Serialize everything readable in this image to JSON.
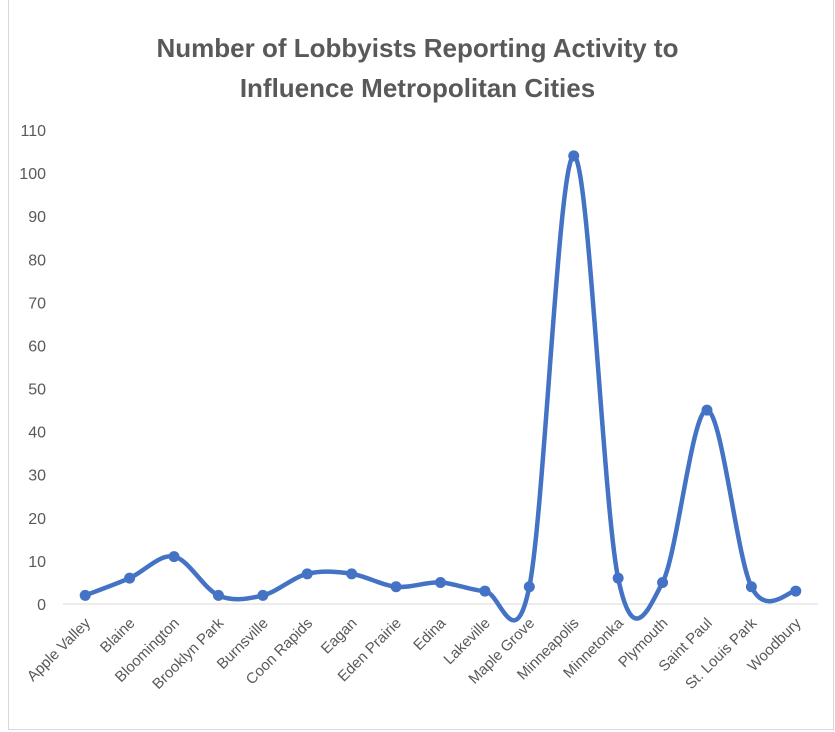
{
  "chart_data": {
    "type": "line",
    "title_line1": "Number of Lobbyists Reporting  Activity  to",
    "title_line2": "Influence Metropolitan Cities",
    "xlabel": "",
    "ylabel": "",
    "ylim": [
      0,
      110
    ],
    "yticks": [
      0,
      10,
      20,
      30,
      40,
      50,
      60,
      70,
      80,
      90,
      100,
      110
    ],
    "smooth": true,
    "grid": false,
    "legend": "none",
    "color": "#4472c4",
    "categories": [
      "Apple Valley",
      "Blaine",
      "Bloomington",
      "Brooklyn Park",
      "Burnsville",
      "Coon Rapids",
      "Eagan",
      "Eden Prairie",
      "Edina",
      "Lakeville",
      "Maple Grove",
      "Minneapolis",
      "Minnetonka",
      "Plymouth",
      "Saint Paul",
      "St. Louis Park",
      "Woodbury"
    ],
    "values": [
      2,
      6,
      11,
      2,
      2,
      7,
      7,
      4,
      5,
      3,
      4,
      104,
      6,
      5,
      45,
      4,
      3
    ]
  }
}
